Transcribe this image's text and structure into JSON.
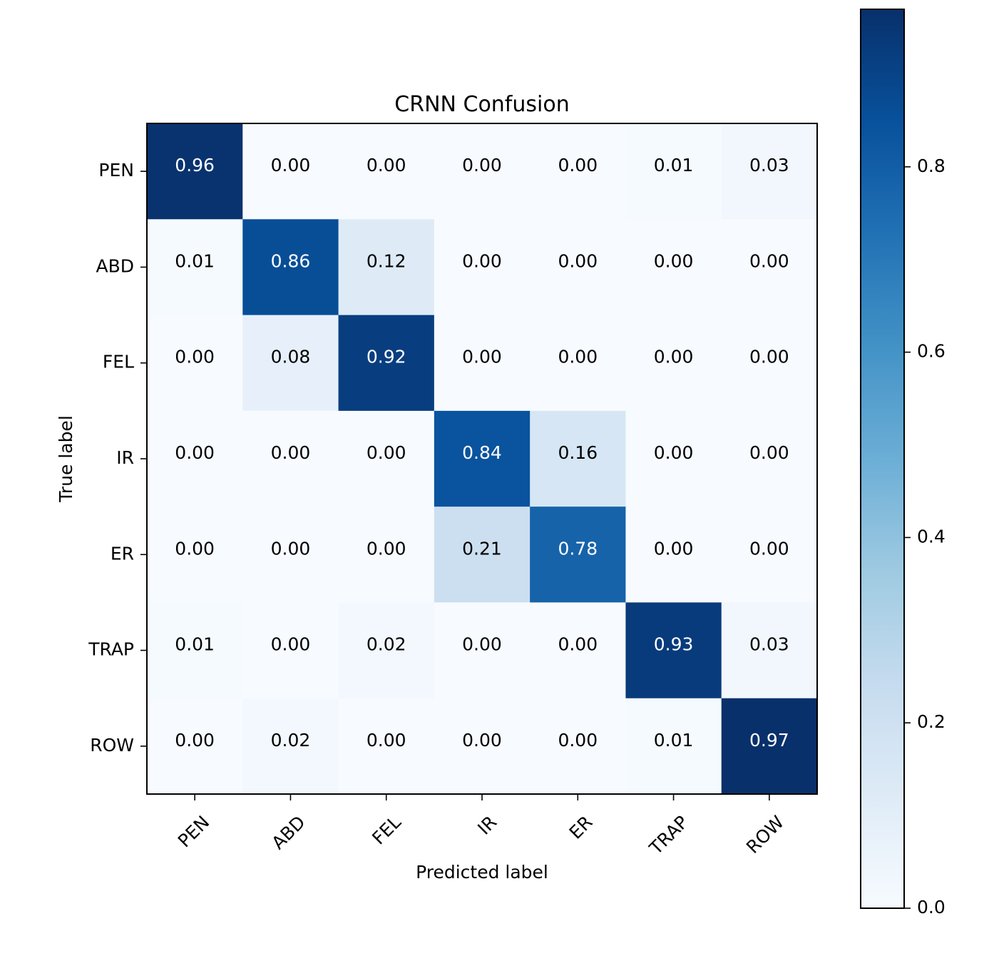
{
  "chart_data": {
    "type": "heatmap",
    "title": "CRNN Confusion",
    "xlabel": "Predicted label",
    "ylabel": "True label",
    "x_categories": [
      "PEN",
      "ABD",
      "FEL",
      "IR",
      "ER",
      "TRAP",
      "ROW"
    ],
    "y_categories": [
      "PEN",
      "ABD",
      "FEL",
      "IR",
      "ER",
      "TRAP",
      "ROW"
    ],
    "values": [
      [
        "0.96",
        "0.00",
        "0.00",
        "0.00",
        "0.00",
        "0.01",
        "0.03"
      ],
      [
        "0.01",
        "0.86",
        "0.12",
        "0.00",
        "0.00",
        "0.00",
        "0.00"
      ],
      [
        "0.00",
        "0.08",
        "0.92",
        "0.00",
        "0.00",
        "0.00",
        "0.00"
      ],
      [
        "0.00",
        "0.00",
        "0.00",
        "0.84",
        "0.16",
        "0.00",
        "0.00"
      ],
      [
        "0.00",
        "0.00",
        "0.00",
        "0.21",
        "0.78",
        "0.00",
        "0.00"
      ],
      [
        "0.01",
        "0.00",
        "0.02",
        "0.00",
        "0.00",
        "0.93",
        "0.03"
      ],
      [
        "0.00",
        "0.02",
        "0.00",
        "0.00",
        "0.00",
        "0.01",
        "0.97"
      ]
    ],
    "colormap": "Blues",
    "color_range": [
      0,
      0.97
    ],
    "colorbar_ticks": [
      "0.0",
      "0.2",
      "0.4",
      "0.6",
      "0.8"
    ],
    "colorbar_tick_values": [
      0,
      0.2,
      0.4,
      0.6,
      0.8
    ],
    "text_color_light": "#ffffff",
    "text_color_dark": "#000000"
  }
}
